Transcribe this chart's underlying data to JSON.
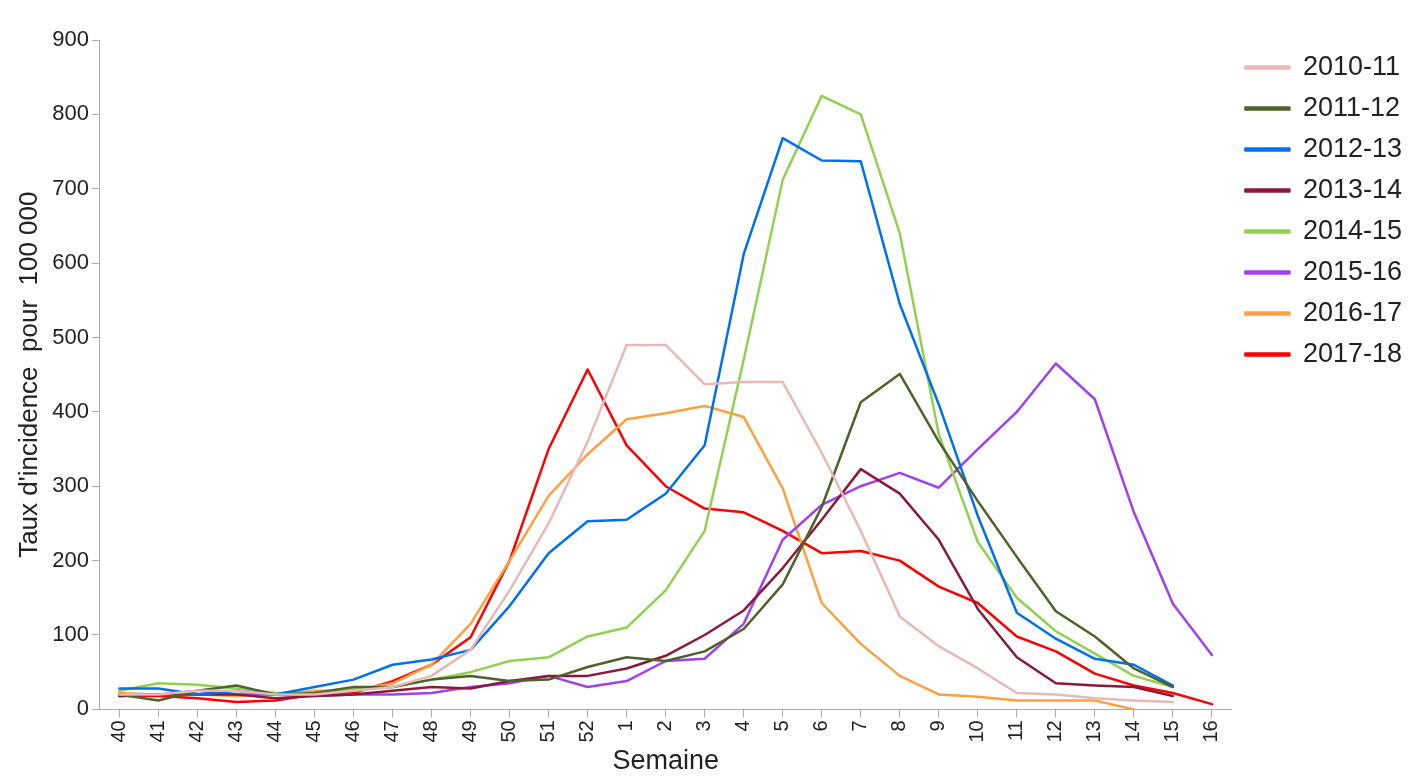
{
  "chart_data": {
    "type": "line",
    "xlabel": "Semaine",
    "ylabel": "Taux d'incidence  pour  100 000",
    "categories": [
      "40",
      "41",
      "42",
      "43",
      "44",
      "45",
      "46",
      "47",
      "48",
      "49",
      "50",
      "51",
      "52",
      "1",
      "2",
      "3",
      "4",
      "5",
      "6",
      "7",
      "8",
      "9",
      "10",
      "11",
      "12",
      "13",
      "14",
      "15",
      "16"
    ],
    "ylim": [
      0,
      900
    ],
    "yticks": [
      0,
      100,
      200,
      300,
      400,
      500,
      600,
      700,
      800,
      900
    ],
    "grid": false,
    "legend": "right",
    "marker": "none",
    "line_style": "solid",
    "series": [
      {
        "name": "2010-11",
        "color": "#e6b9b8",
        "values": [
          20,
          20,
          25,
          25,
          20,
          20,
          25,
          30,
          45,
          80,
          160,
          250,
          360,
          490,
          490,
          437,
          440,
          440,
          345,
          240,
          125,
          85,
          55,
          22,
          20,
          15,
          12,
          10,
          null
        ]
      },
      {
        "name": "2011-12",
        "color": "#4f6228",
        "values": [
          20,
          12,
          25,
          32,
          20,
          22,
          30,
          30,
          40,
          45,
          38,
          40,
          57,
          70,
          65,
          78,
          108,
          168,
          272,
          413,
          451,
          360,
          280,
          205,
          132,
          98,
          55,
          30,
          null
        ]
      },
      {
        "name": "2012-13",
        "color": "#0070f0",
        "values": [
          28,
          28,
          20,
          25,
          20,
          30,
          40,
          60,
          67,
          80,
          139,
          210,
          253,
          255,
          290,
          355,
          612,
          768,
          738,
          737,
          545,
          410,
          260,
          130,
          95,
          68,
          60,
          32,
          null
        ]
      },
      {
        "name": "2013-14",
        "color": "#8b1a3a",
        "values": [
          18,
          20,
          20,
          20,
          15,
          18,
          20,
          25,
          30,
          28,
          38,
          45,
          45,
          55,
          72,
          100,
          133,
          190,
          255,
          323,
          290,
          228,
          135,
          70,
          35,
          32,
          30,
          18,
          null
        ]
      },
      {
        "name": "2014-15",
        "color": "#92d050",
        "values": [
          25,
          35,
          33,
          28,
          22,
          22,
          27,
          30,
          40,
          50,
          65,
          70,
          98,
          110,
          160,
          240,
          470,
          712,
          825,
          800,
          640,
          370,
          225,
          150,
          105,
          75,
          45,
          30,
          null
        ]
      },
      {
        "name": "2015-16",
        "color": "#a040f0",
        "values": [
          18,
          20,
          25,
          20,
          20,
          18,
          20,
          20,
          22,
          30,
          35,
          45,
          30,
          38,
          65,
          68,
          115,
          228,
          275,
          300,
          318,
          298,
          350,
          400,
          465,
          417,
          265,
          142,
          73
        ]
      },
      {
        "name": "2016-17",
        "color": "#ffa040",
        "values": [
          22,
          20,
          20,
          18,
          20,
          25,
          25,
          35,
          60,
          115,
          200,
          287,
          343,
          390,
          398,
          408,
          393,
          297,
          143,
          88,
          45,
          20,
          17,
          12,
          12,
          12,
          0,
          null,
          null
        ]
      },
      {
        "name": "2017-18",
        "color": "#ff0000",
        "values": [
          18,
          18,
          15,
          10,
          12,
          20,
          22,
          38,
          60,
          97,
          200,
          350,
          457,
          355,
          300,
          270,
          265,
          240,
          210,
          213,
          200,
          165,
          143,
          98,
          78,
          48,
          32,
          22,
          7
        ]
      }
    ]
  }
}
